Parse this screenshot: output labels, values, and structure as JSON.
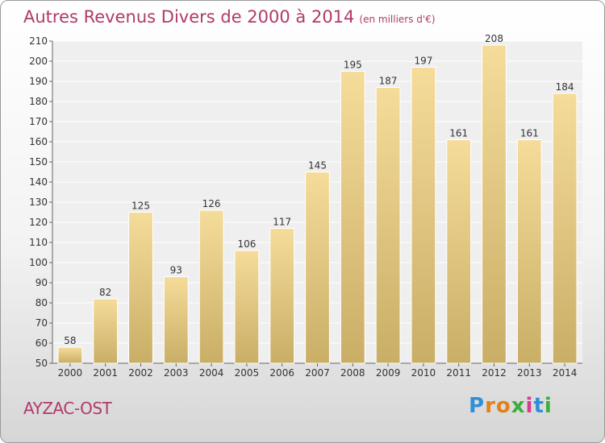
{
  "chart_data": {
    "type": "bar",
    "title": "Autres Revenus Divers de 2000 à 2014",
    "subtitle": "(en milliers d'€)",
    "categories": [
      "2000",
      "2001",
      "2002",
      "2003",
      "2004",
      "2005",
      "2006",
      "2007",
      "2008",
      "2009",
      "2010",
      "2011",
      "2012",
      "2013",
      "2014"
    ],
    "values": [
      58,
      82,
      125,
      93,
      126,
      106,
      117,
      145,
      195,
      187,
      197,
      161,
      208,
      161,
      184
    ],
    "ylim": [
      50,
      210
    ],
    "yticks": [
      50,
      60,
      70,
      80,
      90,
      100,
      110,
      120,
      130,
      140,
      150,
      160,
      170,
      180,
      190,
      200,
      210
    ],
    "grid": true,
    "legend": "none",
    "bar_color_top": "#f5dc9a",
    "bar_color_bottom": "#c9ae66"
  },
  "place_name": "AYZAC-OST",
  "logo": {
    "letters": [
      "P",
      "r",
      "o",
      "x",
      "i",
      "t",
      "i"
    ],
    "colors": [
      "#2f8fd8",
      "#e0821c",
      "#e0821c",
      "#3cae3c",
      "#d93a8c",
      "#2f8fd8",
      "#3cae3c"
    ]
  },
  "accent_color": "#b03a6a"
}
